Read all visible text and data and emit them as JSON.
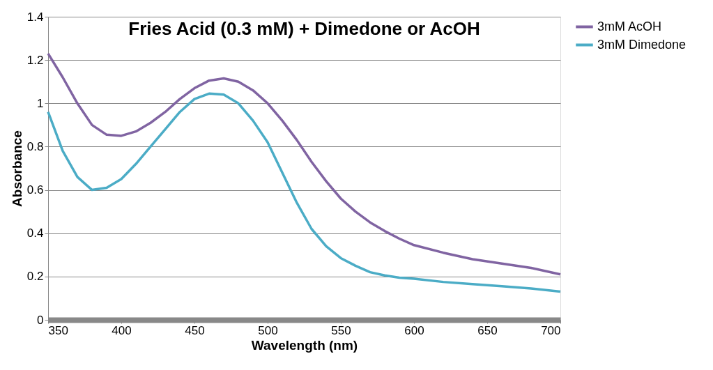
{
  "chart_data": {
    "type": "line",
    "title": "Fries Acid (0.3 mM) + Dimedone or AcOH",
    "xlabel": "Wavelength (nm)",
    "ylabel": "Absorbance",
    "x": [
      350,
      360,
      370,
      380,
      390,
      400,
      410,
      420,
      430,
      440,
      450,
      460,
      470,
      480,
      490,
      500,
      510,
      520,
      530,
      540,
      550,
      560,
      570,
      580,
      590,
      600,
      620,
      640,
      660,
      680,
      700
    ],
    "series": [
      {
        "name": "3mM AcOH",
        "color": "#8064a2",
        "values": [
          1.23,
          1.12,
          1.0,
          0.9,
          0.855,
          0.85,
          0.87,
          0.91,
          0.96,
          1.02,
          1.07,
          1.105,
          1.115,
          1.1,
          1.06,
          1.0,
          0.92,
          0.83,
          0.73,
          0.64,
          0.56,
          0.5,
          0.45,
          0.41,
          0.375,
          0.345,
          0.31,
          0.28,
          0.26,
          0.24,
          0.21
        ]
      },
      {
        "name": "3mM Dimedone",
        "color": "#4bacc6",
        "values": [
          0.96,
          0.78,
          0.66,
          0.6,
          0.61,
          0.65,
          0.72,
          0.8,
          0.88,
          0.96,
          1.02,
          1.045,
          1.04,
          1.0,
          0.92,
          0.82,
          0.68,
          0.54,
          0.42,
          0.34,
          0.285,
          0.25,
          0.22,
          0.205,
          0.195,
          0.19,
          0.175,
          0.165,
          0.155,
          0.145,
          0.13
        ]
      }
    ],
    "xlim": [
      350,
      700
    ],
    "xticks": [
      350,
      400,
      450,
      500,
      550,
      600,
      650,
      700
    ],
    "ylim": [
      0,
      1.4
    ],
    "yticks": [
      0,
      0.2,
      0.4,
      0.6,
      0.8,
      1,
      1.2,
      1.4
    ],
    "grid": "y",
    "legend": "right",
    "marker": "none",
    "line_style": "solid"
  }
}
